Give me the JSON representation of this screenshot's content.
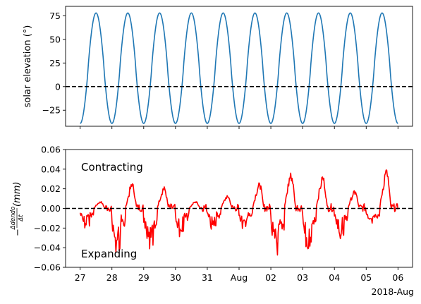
{
  "chart_data": [
    {
      "type": "line",
      "ylabel": "solar elevation (°)",
      "ylim": [
        -42,
        85
      ],
      "yticks": [
        -25,
        0,
        25,
        50,
        75
      ],
      "x_range": [
        "2018-07-27T00:00",
        "2018-08-06T00:00"
      ],
      "xlim": [
        "2018-07-26T13:00",
        "2018-08-06T11:00"
      ],
      "series": [
        {
          "color": "#1f77b4",
          "points": [
            [
              "2018-07-27T00:00",
              -39
            ],
            [
              "2018-07-27T03:00",
              -18
            ],
            [
              "2018-07-27T06:00",
              18
            ],
            [
              "2018-07-27T09:00",
              60
            ],
            [
              "2018-07-27T12:00",
              78
            ],
            [
              "2018-07-27T15:00",
              60
            ],
            [
              "2018-07-27T18:00",
              18
            ],
            [
              "2018-07-27T21:00",
              -18
            ],
            [
              "2018-07-28T00:00",
              -39
            ]
          ]
        }
      ],
      "hlines": [
        {
          "y": 0,
          "style": "dashed",
          "color": "#000000"
        }
      ],
      "grid": false
    },
    {
      "type": "line",
      "ylabel": "$-\\frac{\\Delta dendo}{\\Delta t}(mm)$",
      "ylim": [
        -0.06,
        0.06
      ],
      "yticks": [
        -0.06,
        -0.04,
        -0.02,
        0.0,
        0.02,
        0.04,
        0.06
      ],
      "ytick_labels": [
        "−0.06",
        "−0.04",
        "−0.02",
        "0.00",
        "0.02",
        "0.04",
        "0.06"
      ],
      "x_range": [
        "2018-07-27T00:00",
        "2018-08-06T00:00"
      ],
      "xlim": [
        "2018-07-26T13:00",
        "2018-08-06T11:00"
      ],
      "xticks": [
        "2018-07-27",
        "2018-07-28",
        "2018-07-29",
        "2018-07-30",
        "2018-07-31",
        "2018-08-01",
        "2018-08-02",
        "2018-08-03",
        "2018-08-04",
        "2018-08-05",
        "2018-08-06"
      ],
      "xtick_labels": [
        "27",
        "28",
        "29",
        "30",
        "31",
        "Aug",
        "02",
        "03",
        "04",
        "05",
        "06"
      ],
      "xaxis_offset_label": "2018-Aug",
      "annotations": [
        "Contracting",
        "Expanding"
      ],
      "hlines": [
        {
          "y": 0,
          "style": "dashed",
          "color": "#000000"
        }
      ],
      "grid": false,
      "series": [
        {
          "color": "#ff0000",
          "daily_peaks": [
            {
              "day": "2018-07-27",
              "peak": 0.007,
              "trough": -0.018
            },
            {
              "day": "2018-07-28",
              "peak": 0.025,
              "trough": -0.043
            },
            {
              "day": "2018-07-29",
              "peak": 0.022,
              "trough": -0.042
            },
            {
              "day": "2018-07-30",
              "peak": 0.007,
              "trough": -0.025
            },
            {
              "day": "2018-07-31",
              "peak": 0.013,
              "trough": -0.02
            },
            {
              "day": "2018-08-01",
              "peak": 0.026,
              "trough": -0.02
            },
            {
              "day": "2018-08-02",
              "peak": 0.036,
              "trough": -0.047
            },
            {
              "day": "2018-08-03",
              "peak": 0.032,
              "trough": -0.041
            },
            {
              "day": "2018-08-04",
              "peak": 0.018,
              "trough": -0.028
            },
            {
              "day": "2018-08-05",
              "peak": 0.039,
              "trough": -0.02
            }
          ]
        }
      ]
    }
  ]
}
